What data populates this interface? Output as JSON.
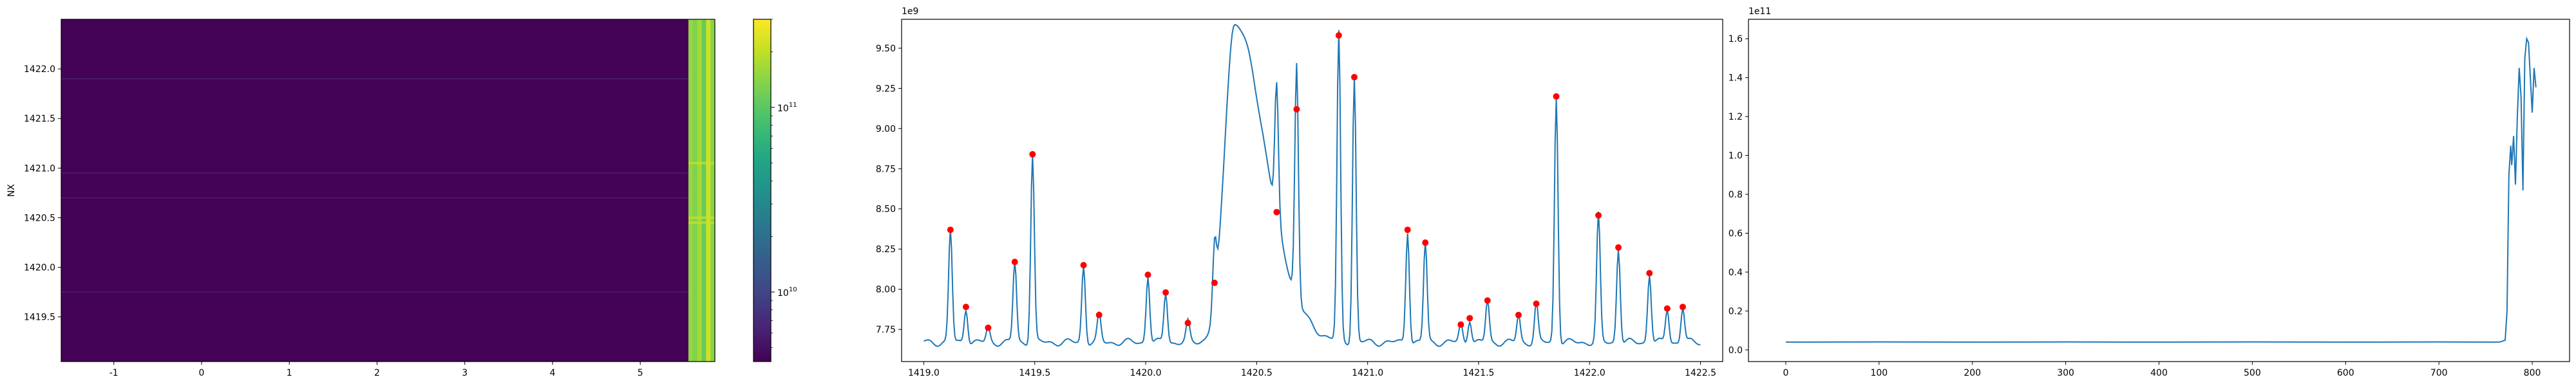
{
  "chart_data": [
    {
      "type": "heatmap",
      "colormap": "viridis",
      "ylabel": "NX",
      "xlim": [
        -1.6,
        5.85
      ],
      "ylim": [
        1419.05,
        1422.5
      ],
      "xticks": [
        "-1",
        "0",
        "1",
        "2",
        "3",
        "4",
        "5"
      ],
      "yticks": [
        "1419.5",
        "1420.0",
        "1420.5",
        "1421.0",
        "1421.5",
        "1422.0"
      ],
      "colorbar": {
        "scale": "log",
        "range": [
          4200000000.0,
          300000000000.0
        ],
        "ticks": [
          {
            "value": 10000000000.0,
            "base": "10",
            "exp": "10"
          },
          {
            "value": 100000000000.0,
            "base": "10",
            "exp": "11"
          }
        ]
      },
      "bright_columns_x": [
        5.55,
        5.85
      ],
      "dark_fill_value": 4300000000.0,
      "right_column_values": [
        150000000000.0,
        130000000000.0,
        170000000000.0,
        110000000000.0,
        220000000000.0,
        140000000000.0
      ]
    },
    {
      "type": "line",
      "exponent_label": "1e9",
      "color": "#1f77b4",
      "marker_color": "#ff0000",
      "xlim": [
        1418.9,
        1422.6
      ],
      "ylim": [
        7.55,
        9.68
      ],
      "xticks": [
        "1419.0",
        "1419.5",
        "1420.0",
        "1420.5",
        "1421.0",
        "1421.5",
        "1422.0",
        "1422.5"
      ],
      "yticks": [
        "7.75",
        "8.00",
        "8.25",
        "8.50",
        "8.75",
        "9.00",
        "9.25",
        "9.50"
      ],
      "baseline": 7.67,
      "broad_bump": {
        "center": 1420.4,
        "peak": 9.62
      },
      "peaks": [
        {
          "x": 1419.12,
          "y": 8.37
        },
        {
          "x": 1419.19,
          "y": 7.89
        },
        {
          "x": 1419.29,
          "y": 7.76
        },
        {
          "x": 1419.41,
          "y": 8.17
        },
        {
          "x": 1419.49,
          "y": 8.84
        },
        {
          "x": 1419.72,
          "y": 8.15
        },
        {
          "x": 1419.79,
          "y": 7.84
        },
        {
          "x": 1420.01,
          "y": 8.09
        },
        {
          "x": 1420.09,
          "y": 7.98
        },
        {
          "x": 1420.19,
          "y": 7.79
        },
        {
          "x": 1420.31,
          "y": 8.04
        },
        {
          "x": 1420.59,
          "y": 8.48
        },
        {
          "x": 1420.68,
          "y": 9.12
        },
        {
          "x": 1420.87,
          "y": 9.58
        },
        {
          "x": 1420.94,
          "y": 9.32
        },
        {
          "x": 1421.18,
          "y": 8.37
        },
        {
          "x": 1421.26,
          "y": 8.29
        },
        {
          "x": 1421.42,
          "y": 7.78
        },
        {
          "x": 1421.46,
          "y": 7.82
        },
        {
          "x": 1421.54,
          "y": 7.93
        },
        {
          "x": 1421.68,
          "y": 7.84
        },
        {
          "x": 1421.76,
          "y": 7.91
        },
        {
          "x": 1421.85,
          "y": 9.2
        },
        {
          "x": 1422.04,
          "y": 8.46
        },
        {
          "x": 1422.13,
          "y": 8.26
        },
        {
          "x": 1422.27,
          "y": 8.1
        },
        {
          "x": 1422.35,
          "y": 7.88
        },
        {
          "x": 1422.42,
          "y": 7.89
        }
      ]
    },
    {
      "type": "line",
      "exponent_label": "1e11",
      "color": "#1f77b4",
      "xlim": [
        -40,
        840
      ],
      "ylim": [
        -0.06,
        1.7
      ],
      "xticks": [
        "0",
        "100",
        "200",
        "300",
        "400",
        "500",
        "600",
        "700",
        "800"
      ],
      "yticks": [
        "0.0",
        "0.2",
        "0.4",
        "0.6",
        "0.8",
        "1.0",
        "1.2",
        "1.4",
        "1.6"
      ],
      "x": [
        0,
        100,
        200,
        300,
        400,
        500,
        600,
        700,
        765,
        771,
        773,
        775,
        777,
        778,
        780,
        782,
        784,
        786,
        788,
        790,
        792,
        794,
        796,
        798,
        800,
        802,
        804
      ],
      "y": [
        0.04,
        0.041,
        0.04,
        0.041,
        0.04,
        0.041,
        0.04,
        0.041,
        0.04,
        0.05,
        0.2,
        0.9,
        1.05,
        0.95,
        1.1,
        0.85,
        1.2,
        1.45,
        1.3,
        0.82,
        1.5,
        1.6,
        1.58,
        1.4,
        1.22,
        1.45,
        1.35
      ]
    }
  ]
}
